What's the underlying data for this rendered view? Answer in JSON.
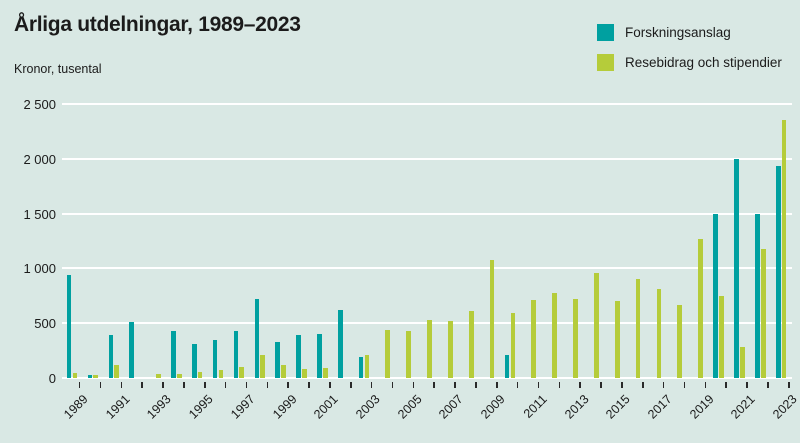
{
  "title": "Årliga utdelningar, 1989–2023",
  "subtitle": "Kronor, tusental",
  "legend": [
    {
      "label": "Forskningsanslag",
      "color": "#00a0a0"
    },
    {
      "label": "Resebidrag och stipendier",
      "color": "#b5cc3a"
    }
  ],
  "colors": {
    "background": "#d9e8e4",
    "gridline": "#ffffff",
    "text": "#1b1b1b",
    "teal_series": "#00a0a0",
    "green_series": "#b5cc3a"
  },
  "y_axis": {
    "tick_labels": [
      "2 500",
      "2 000",
      "1 500",
      "1 000",
      "500",
      "0"
    ]
  },
  "chart_data": {
    "type": "bar",
    "title": "Årliga utdelningar, 1989–2023",
    "ylabel": "Kronor, tusental",
    "xlabel": "",
    "ylim": [
      0,
      2500
    ],
    "yticks": [
      0,
      500,
      1000,
      1500,
      2000,
      2500
    ],
    "grid": true,
    "legend_position": "top-right",
    "xtick_label_step": 2,
    "categories": [
      1989,
      1990,
      1991,
      1992,
      1993,
      1994,
      1995,
      1996,
      1997,
      1998,
      1999,
      2000,
      2001,
      2002,
      2003,
      2004,
      2005,
      2006,
      2007,
      2008,
      2009,
      2010,
      2011,
      2012,
      2013,
      2014,
      2015,
      2016,
      2017,
      2018,
      2019,
      2020,
      2021,
      2022,
      2023
    ],
    "series": [
      {
        "name": "Forskningsanslag",
        "color": "#00a0a0",
        "values": [
          940,
          30,
          390,
          510,
          0,
          430,
          310,
          350,
          430,
          720,
          330,
          390,
          400,
          620,
          190,
          0,
          0,
          0,
          0,
          0,
          0,
          210,
          0,
          0,
          0,
          0,
          0,
          0,
          0,
          0,
          0,
          1500,
          2000,
          1500,
          1930
        ]
      },
      {
        "name": "Resebidrag och stipendier",
        "color": "#b5cc3a",
        "values": [
          50,
          30,
          115,
          0,
          40,
          40,
          55,
          70,
          105,
          210,
          115,
          80,
          90,
          0,
          210,
          435,
          430,
          525,
          520,
          615,
          1080,
          590,
          710,
          775,
          725,
          960,
          700,
          900,
          810,
          670,
          1270,
          750,
          280,
          1180,
          2350
        ]
      }
    ]
  }
}
